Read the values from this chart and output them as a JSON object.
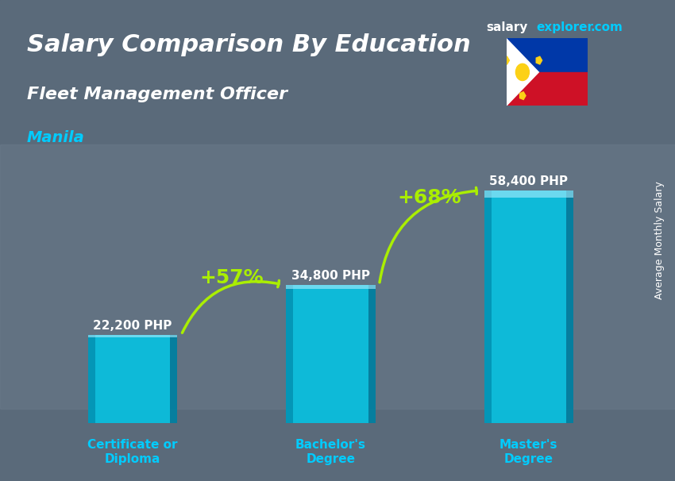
{
  "title": "Salary Comparison By Education",
  "subtitle": "Fleet Management Officer",
  "location": "Manila",
  "categories": [
    "Certificate or\nDiploma",
    "Bachelor's\nDegree",
    "Master's\nDegree"
  ],
  "values": [
    22200,
    34800,
    58400
  ],
  "labels": [
    "22,200 PHP",
    "34,800 PHP",
    "58,400 PHP"
  ],
  "pct_labels": [
    "+57%",
    "+68%"
  ],
  "bar_color_top": "#00d4f0",
  "bar_color_mid": "#00aacc",
  "bar_color_bottom": "#0088aa",
  "bar_color_face": "#00c8e8",
  "bar_width": 0.45,
  "bg_color": "#2a3a4a",
  "text_color": "#ffffff",
  "title_fontsize": 22,
  "subtitle_fontsize": 16,
  "location_color": "#00ccff",
  "arrow_color": "#aaee00",
  "ylabel": "Average Monthly Salary",
  "ylim": [
    0,
    70000
  ],
  "watermark": "salaryexplorer.com"
}
